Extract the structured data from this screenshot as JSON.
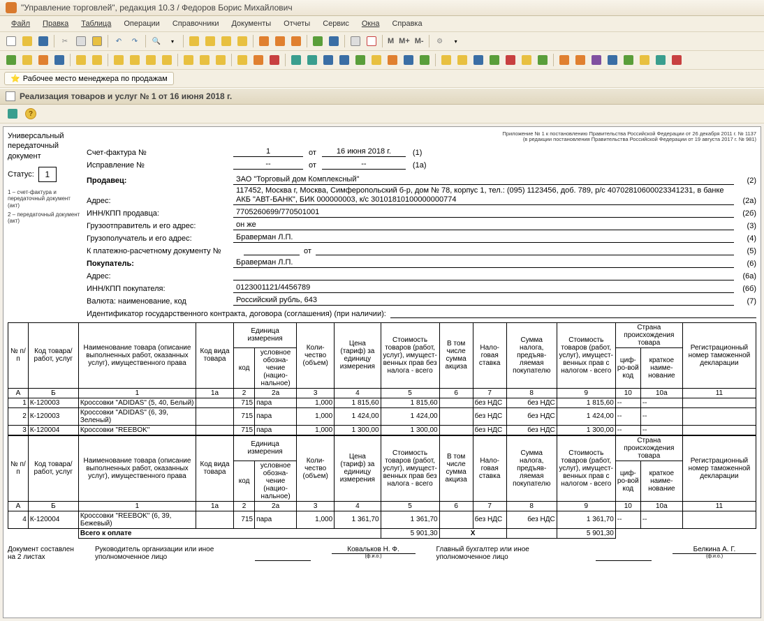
{
  "app": {
    "title": "\"Управление торговлей\", редакция 10.3 / Федоров Борис Михайлович"
  },
  "menu": {
    "file": "Файл",
    "edit": "Правка",
    "table": "Таблица",
    "ops": "Операции",
    "refs": "Справочники",
    "docs": "Документы",
    "reports": "Отчеты",
    "service": "Сервис",
    "windows": "Окна",
    "help": "Справка"
  },
  "toolbar_text": {
    "m": "М",
    "mplus": "М+",
    "mminus": "М-"
  },
  "secondary": {
    "workspace": "Рабочее место менеджера по продажам"
  },
  "doc": {
    "title": "Реализация товаров и услуг № 1 от 16 июня 2018 г.",
    "upd_name": "Универсальный передаточный документ",
    "status_label": "Статус:",
    "status_value": "1",
    "note1": "1 – счет-фактура и передаточный документ (акт)",
    "note2": "2 – передаточный документ (акт)",
    "regulation1": "Приложение № 1 к постановлению Правительства Российской Федерации от 26 декабря 2011 г. № 1137",
    "regulation2": "(в редакции постановления Правительства Российской Федерации от 19 августа 2017 г. № 981)"
  },
  "header": {
    "invoice_label": "Счет-фактура №",
    "invoice_no": "1",
    "from_label": "от",
    "invoice_date": "16 июня 2018 г.",
    "suffix1": "(1)",
    "correction_label": "Исправление №",
    "correction_no": "--",
    "correction_date": "--",
    "suffix1a": "(1а)",
    "seller_label": "Продавец:",
    "seller": "ЗАО \"Торговый дом Комплексный\"",
    "suffix2": "(2)",
    "address_label": "Адрес:",
    "address": "117452, Москва г, Москва, Симферопольский б-р, дом № 78, корпус 1, тел.: (095) 1123456, доб. 789, р/с 40702810600023341231, в банке АКБ \"АВТ-БАНК\", БИК 000000003, к/с 30101810100000000774",
    "suffix2a": "(2а)",
    "inn_seller_label": "ИНН/КПП продавца:",
    "inn_seller": "7705260699/770501001",
    "suffix2b": "(2б)",
    "shipper_label": "Грузоотправитель и его адрес:",
    "shipper": "он же",
    "suffix3": "(3)",
    "consignee_label": "Грузополучатель и его адрес:",
    "consignee": "Браверман Л.П.",
    "suffix4": "(4)",
    "payment_doc_label": "К платежно-расчетному документу №",
    "payment_doc_from": "от",
    "suffix5": "(5)",
    "buyer_label": "Покупатель:",
    "buyer": "Браверман Л.П.",
    "suffix6": "(6)",
    "buyer_address_label": "Адрес:",
    "buyer_address": "",
    "suffix6a": "(6а)",
    "inn_buyer_label": "ИНН/КПП покупателя:",
    "inn_buyer": "0123001121/4456789",
    "suffix6b": "(6б)",
    "currency_label": "Валюта: наименование, код",
    "currency": "Российский рубль, 643",
    "suffix7": "(7)",
    "contract_ident_label": "Идентификатор государственного контракта, договора (соглашения) (при наличии):"
  },
  "th": {
    "num": "№ п/п",
    "code": "Код товара/ работ, услуг",
    "name": "Наименование товара (описание выполненных работ, оказанных услуг), имущественного права",
    "type_code": "Код вида товара",
    "unit": "Единица измерения",
    "unit_code": "код",
    "unit_name": "условное обозна-чение (нацио-нальное)",
    "qty": "Коли-чество (объем)",
    "price": "Цена (тариф) за единицу измерения",
    "cost_no_tax": "Стоимость товаров (работ, услуг), имущест-венных прав без налога - всего",
    "excise": "В том числе сумма акциза",
    "tax_rate": "Нало-говая ставка",
    "tax_sum": "Сумма налога, предъяв-ляемая покупателю",
    "cost_with_tax": "Стоимость товаров (работ, услуг), имущест-венных прав с налогом - всего",
    "origin": "Страна происхождения товара",
    "origin_code": "циф-ро-вой код",
    "origin_name": "краткое наиме-нование",
    "decl": "Регистрационный номер таможенной декларации"
  },
  "subhead": {
    "a": "А",
    "b": "Б",
    "c1": "1",
    "c1a": "1а",
    "c2": "2",
    "c2a": "2а",
    "c3": "3",
    "c4": "4",
    "c5": "5",
    "c6": "6",
    "c7": "7",
    "c8": "8",
    "c9": "9",
    "c10": "10",
    "c10a": "10а",
    "c11": "11"
  },
  "rows1": [
    {
      "n": "1",
      "code": "К-120003",
      "name": "Кроссовки \"ADIDAS\" (5, 40, Белый)",
      "type": "",
      "ucode": "715",
      "uname": "пара",
      "qty": "1,000",
      "price": "1 815,60",
      "cost": "1 815,60",
      "excise": "",
      "rate": "без НДС",
      "tax": "без НДС",
      "total": "1 815,60",
      "oc": "--",
      "on": "--",
      "decl": ""
    },
    {
      "n": "2",
      "code": "К-120003",
      "name": "Кроссовки \"ADIDAS\" (6, 39, Зеленый)",
      "type": "",
      "ucode": "715",
      "uname": "пара",
      "qty": "1,000",
      "price": "1 424,00",
      "cost": "1 424,00",
      "excise": "",
      "rate": "без НДС",
      "tax": "без НДС",
      "total": "1 424,00",
      "oc": "--",
      "on": "--",
      "decl": ""
    },
    {
      "n": "3",
      "code": "К-120004",
      "name": "Кроссовки \"REEBOK\"",
      "type": "",
      "ucode": "715",
      "uname": "пара",
      "qty": "1,000",
      "price": "1 300,00",
      "cost": "1 300,00",
      "excise": "",
      "rate": "без НДС",
      "tax": "без НДС",
      "total": "1 300,00",
      "oc": "--",
      "on": "--",
      "decl": ""
    }
  ],
  "rows2": [
    {
      "n": "4",
      "code": "К-120004",
      "name": "Кроссовки \"REEBOK\" (6, 39, Бежевый)",
      "type": "",
      "ucode": "715",
      "uname": "пара",
      "qty": "1,000",
      "price": "1 361,70",
      "cost": "1 361,70",
      "excise": "",
      "rate": "без НДС",
      "tax": "без НДС",
      "total": "1 361,70",
      "oc": "--",
      "on": "--",
      "decl": ""
    }
  ],
  "totals": {
    "label": "Всего к оплате",
    "cost": "5 901,30",
    "tax_x": "Х",
    "total": "5 901,30"
  },
  "sig": {
    "sheets_label": "Документ составлен на 2 листах",
    "head_label": "Руководитель организации или иное уполномоченное лицо",
    "head_name": "Ковальков Н. Ф.",
    "accountant_label": "Главный бухгалтер или иное уполномоченное лицо",
    "accountant_name": "Белкина А. Г.",
    "fio": "(ф.и.о.)"
  },
  "colors": {
    "bg": "#f4f0e8",
    "border": "#c8bda0",
    "icon_orange": "#e08030",
    "icon_green": "#5a9e3a",
    "icon_blue": "#3a6ea5",
    "icon_red": "#c84040",
    "icon_yellow": "#e8c040",
    "icon_teal": "#3a9e8e",
    "icon_purple": "#8050a0"
  }
}
